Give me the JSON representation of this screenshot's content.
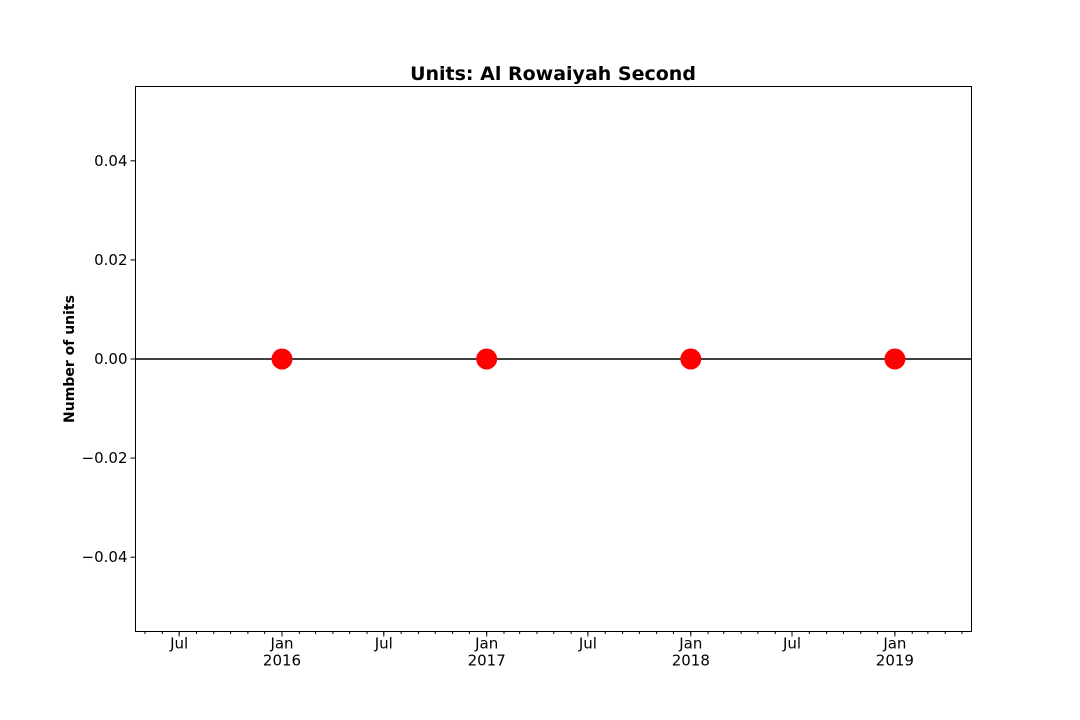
{
  "chart_data": {
    "type": "line",
    "title": "Units: Al Rowaiyah Second",
    "xlabel": "",
    "ylabel": "Number of units",
    "series": [
      {
        "x": [
          "2016-01-01",
          "2017-01-01",
          "2018-01-01",
          "2019-01-01"
        ],
        "values": [
          0,
          0,
          0,
          0
        ],
        "color": "#000000",
        "marker_color": "#ff0000"
      }
    ],
    "xlim": [
      "2015-04-14",
      "2019-05-18"
    ],
    "ylim": [
      -0.055,
      0.055
    ],
    "yticks": [
      -0.04,
      -0.02,
      0.0,
      0.02,
      0.04
    ],
    "ytick_labels": [
      "−0.04",
      "−0.02",
      "0.00",
      "0.02",
      "0.04"
    ],
    "xticks": [
      {
        "date": "2015-07-01",
        "label": "Jul",
        "sublabel": ""
      },
      {
        "date": "2016-01-01",
        "label": "Jan",
        "sublabel": "2016"
      },
      {
        "date": "2016-07-01",
        "label": "Jul",
        "sublabel": ""
      },
      {
        "date": "2017-01-01",
        "label": "Jan",
        "sublabel": "2017"
      },
      {
        "date": "2017-07-01",
        "label": "Jul",
        "sublabel": ""
      },
      {
        "date": "2018-01-01",
        "label": "Jan",
        "sublabel": "2018"
      },
      {
        "date": "2018-07-01",
        "label": "Jul",
        "sublabel": ""
      },
      {
        "date": "2019-01-01",
        "label": "Jan",
        "sublabel": "2019"
      }
    ],
    "minor_xticks": "monthly",
    "grid": false,
    "legend": "none"
  }
}
